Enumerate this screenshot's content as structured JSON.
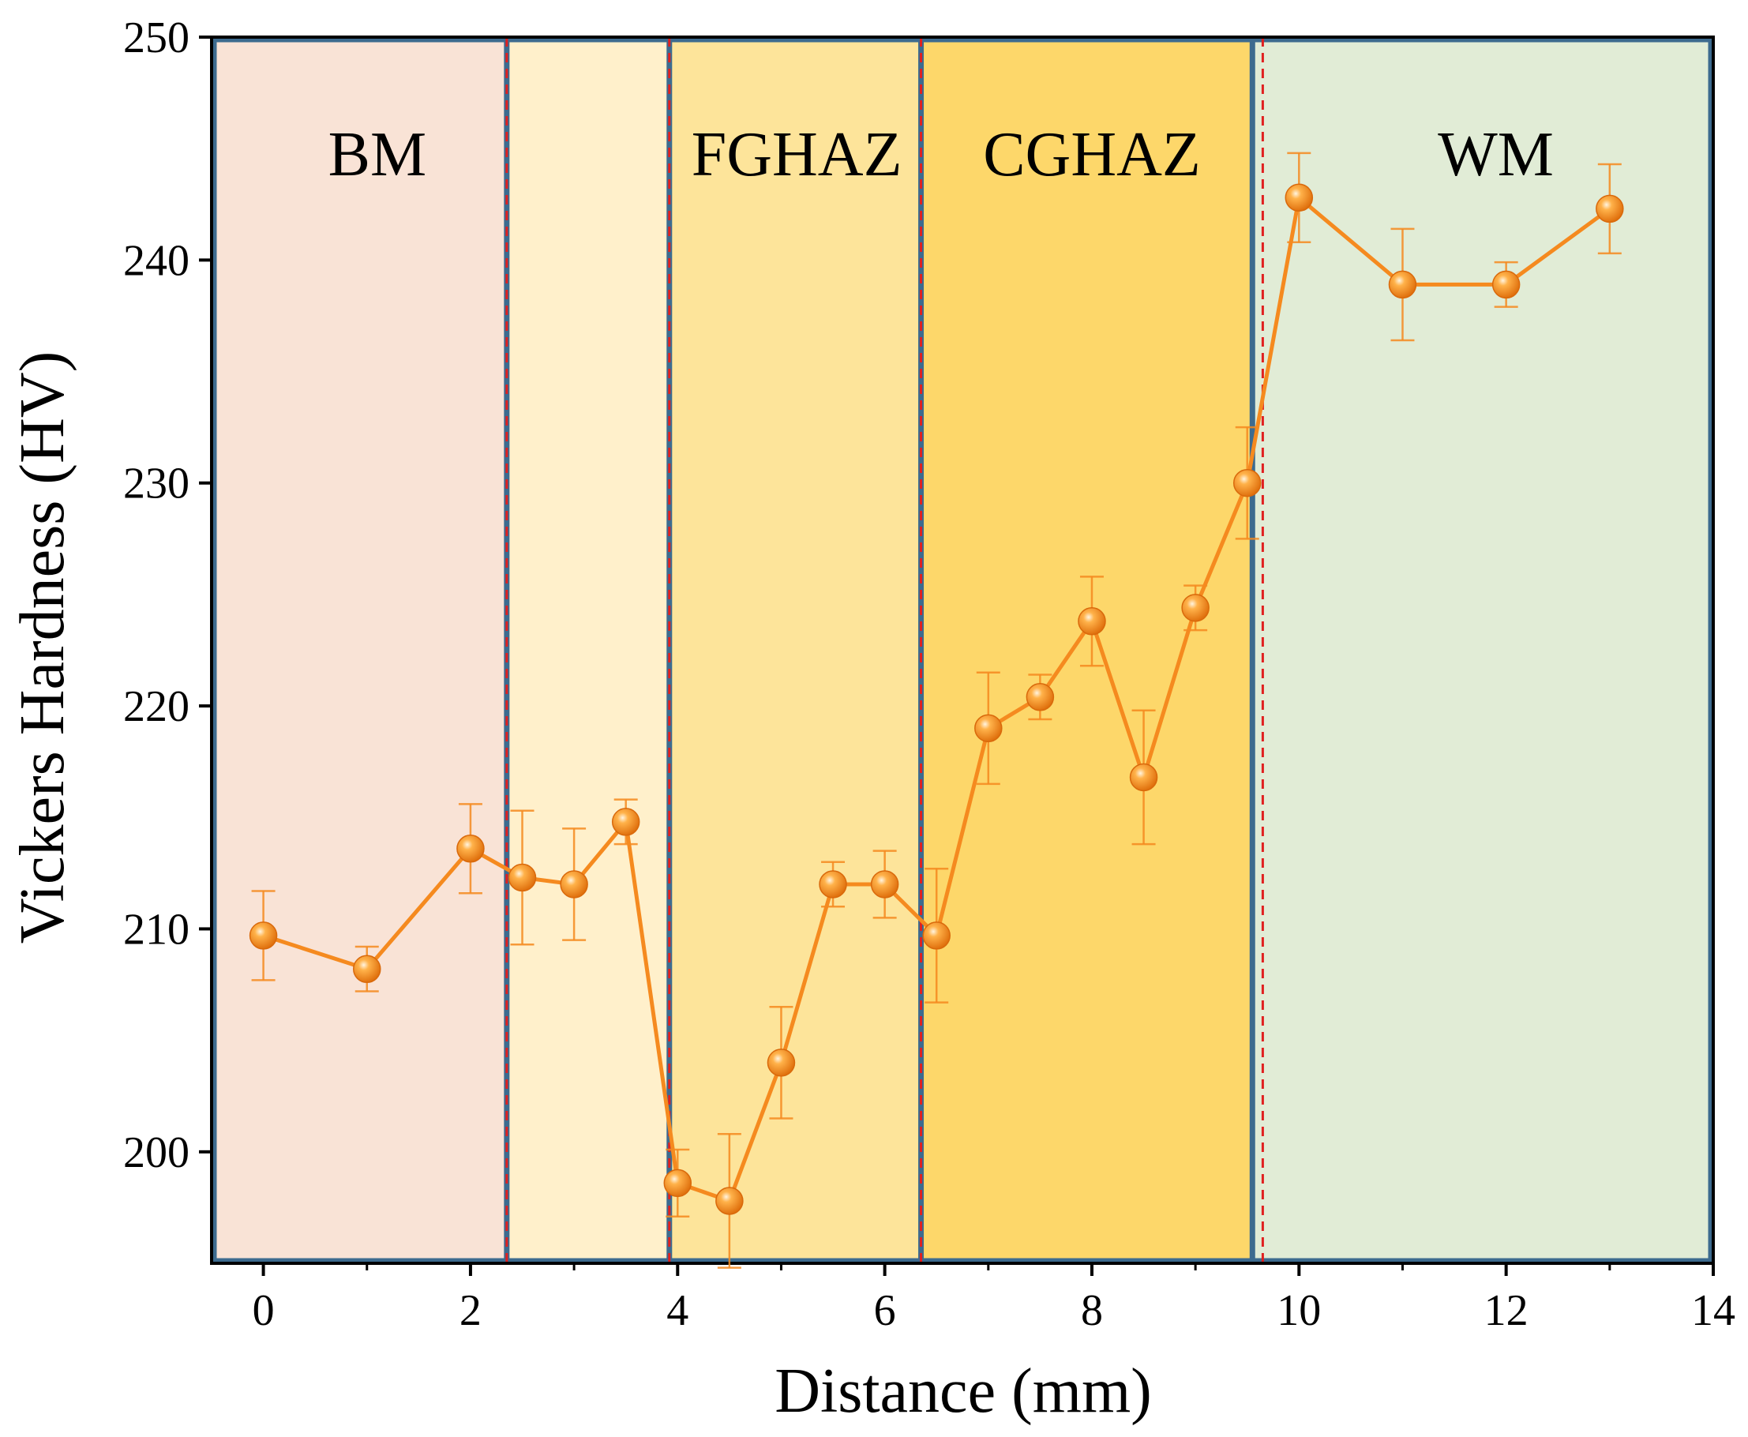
{
  "chart_data": {
    "type": "line",
    "xlabel": "Distance (mm)",
    "ylabel": "Vickers Hardness (HV)",
    "xlim": [
      -0.5,
      14
    ],
    "ylim": [
      195,
      250
    ],
    "xticks": [
      0,
      2,
      4,
      6,
      8,
      10,
      12,
      14
    ],
    "yticks": [
      200,
      210,
      220,
      230,
      240,
      250
    ],
    "grid": false,
    "legend": "none",
    "series": [
      {
        "color": "#f58a1f",
        "marker": "sphere",
        "points": [
          {
            "x": 0,
            "y": 209.7,
            "err": 2.0
          },
          {
            "x": 1,
            "y": 208.2,
            "err": 1.0
          },
          {
            "x": 2,
            "y": 213.6,
            "err": 2.0
          },
          {
            "x": 2.5,
            "y": 212.3,
            "err": 3.0
          },
          {
            "x": 3,
            "y": 212.0,
            "err": 2.5
          },
          {
            "x": 3.5,
            "y": 214.8,
            "err": 1.0
          },
          {
            "x": 4,
            "y": 198.6,
            "err": 1.5
          },
          {
            "x": 4.5,
            "y": 197.8,
            "err": 3.0
          },
          {
            "x": 5,
            "y": 204.0,
            "err": 2.5
          },
          {
            "x": 5.5,
            "y": 212.0,
            "err": 1.0
          },
          {
            "x": 6,
            "y": 212.0,
            "err": 1.5
          },
          {
            "x": 6.5,
            "y": 209.7,
            "err": 3.0
          },
          {
            "x": 7,
            "y": 219.0,
            "err": 2.5
          },
          {
            "x": 7.5,
            "y": 220.4,
            "err": 1.0
          },
          {
            "x": 8,
            "y": 223.8,
            "err": 2.0
          },
          {
            "x": 8.5,
            "y": 216.8,
            "err": 3.0
          },
          {
            "x": 9,
            "y": 224.4,
            "err": 1.0
          },
          {
            "x": 9.5,
            "y": 230.0,
            "err": 2.5
          },
          {
            "x": 10,
            "y": 242.8,
            "err": 2.0
          },
          {
            "x": 11,
            "y": 238.9,
            "err": 2.5
          },
          {
            "x": 12,
            "y": 238.9,
            "err": 1.0
          },
          {
            "x": 13,
            "y": 242.3,
            "err": 2.0
          }
        ]
      }
    ],
    "regions": [
      {
        "label": "BM",
        "x_start": -0.5,
        "x_end": 2.35,
        "color": "#f9e3d6"
      },
      {
        "label": "",
        "x_start": 2.35,
        "x_end": 3.92,
        "color": "#fff0cb"
      },
      {
        "label": "FGHAZ",
        "x_start": 3.92,
        "x_end": 6.35,
        "color": "#fde49a"
      },
      {
        "label": "CGHAZ",
        "x_start": 6.35,
        "x_end": 9.55,
        "color": "#fdd76a"
      },
      {
        "label": "WM",
        "x_start": 9.55,
        "x_end": 14.0,
        "color": "#e1ecd6"
      }
    ],
    "boundary_lines": [
      2.35,
      3.92,
      6.35,
      9.55
    ],
    "dashed_lines": [
      2.35,
      3.92,
      6.35,
      9.65
    ],
    "colors": {
      "region_border": "#3d6b8f",
      "dashed": "#e02020",
      "axis": "#000000"
    }
  }
}
